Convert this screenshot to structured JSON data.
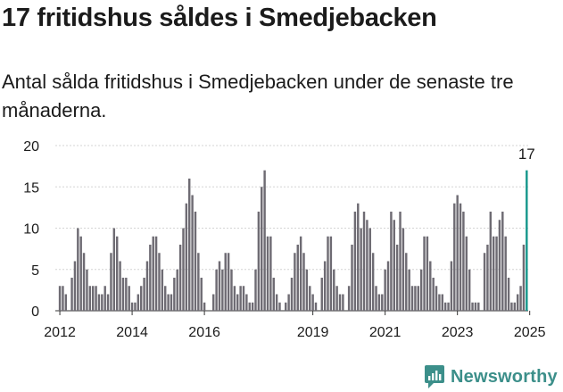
{
  "title": "17 fritidshus såldes i Smedjebacken",
  "subtitle": "Antal sålda fritidshus i Smedjebacken under de senaste tre månaderna.",
  "brand": {
    "name": "Newsworthy",
    "logo_icon": "newsworthy-chart-logo-icon"
  },
  "colors": {
    "bar": "#6e6b73",
    "highlight": "#16978c",
    "grid": "#d4d4d4",
    "text": "#1b1b1b",
    "brand": "#3c8f8a"
  },
  "chart_data": {
    "type": "bar",
    "title": "",
    "xlabel": "",
    "ylabel": "",
    "ylim": [
      0,
      20
    ],
    "yticks": [
      0,
      5,
      10,
      15,
      20
    ],
    "grid": true,
    "xtick_labels": [
      "2012",
      "2014",
      "2016",
      "2019",
      "2021",
      "2023",
      "2025"
    ],
    "xtick_years": [
      2012,
      2014,
      2016,
      2019,
      2021,
      2023,
      2025
    ],
    "start": "2011-12",
    "period": "month",
    "values": [
      0,
      3,
      3,
      2,
      0,
      4,
      6,
      10,
      9,
      7,
      5,
      3,
      3,
      3,
      2,
      2,
      3,
      2,
      7,
      10,
      9,
      6,
      4,
      4,
      3,
      1,
      1,
      2,
      3,
      4,
      6,
      8,
      9,
      9,
      7,
      5,
      3,
      2,
      2,
      4,
      5,
      8,
      10,
      13,
      16,
      14,
      12,
      7,
      4,
      1,
      0,
      0,
      2,
      5,
      6,
      5,
      7,
      7,
      5,
      3,
      2,
      3,
      3,
      2,
      1,
      1,
      5,
      12,
      15,
      17,
      9,
      9,
      4,
      2,
      1,
      0,
      1,
      2,
      4,
      7,
      8,
      9,
      7,
      5,
      3,
      2,
      1,
      0,
      4,
      6,
      9,
      9,
      5,
      3,
      2,
      2,
      0,
      3,
      8,
      12,
      13,
      10,
      12,
      11,
      10,
      7,
      3,
      2,
      2,
      5,
      6,
      12,
      11,
      8,
      12,
      10,
      7,
      5,
      3,
      3,
      3,
      5,
      9,
      9,
      6,
      4,
      3,
      2,
      2,
      1,
      1,
      6,
      13,
      14,
      13,
      12,
      9,
      5,
      1,
      1,
      1,
      0,
      7,
      8,
      12,
      9,
      9,
      11,
      12,
      9,
      4,
      1,
      1,
      2,
      3,
      8,
      17
    ],
    "highlight": {
      "value": 17,
      "label": "17"
    }
  }
}
